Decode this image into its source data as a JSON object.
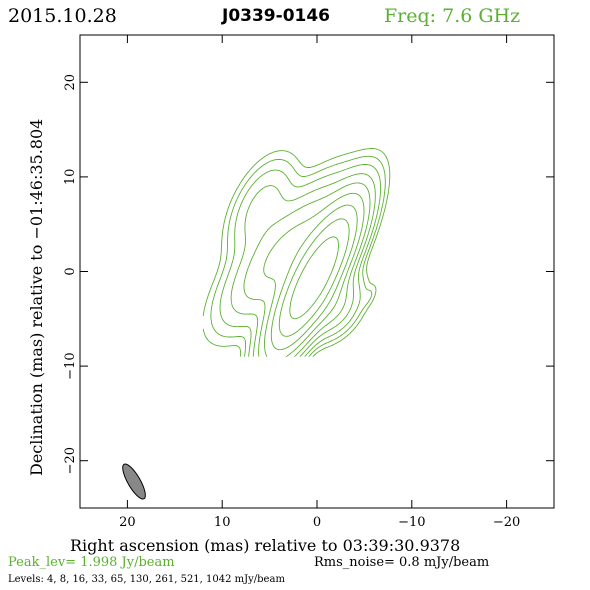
{
  "header": {
    "date": "2015.10.28",
    "source": "J0339-0146",
    "freq": "Freq: 7.6 GHz"
  },
  "footer": {
    "peak": "Peak_lev=  1.998 Jy/beam",
    "rms": "Rms_noise=  0.8 mJy/beam",
    "levels": "Levels:   4,   8,  16,  33,  65, 130, 261, 521, 1042 mJy/beam"
  },
  "chart_data": {
    "type": "contour",
    "xlabel": "Right ascension (mas) relative to 03:39:30.9378",
    "ylabel": "Declination (mas) relative to −01:46:35.804",
    "xlim": [
      25,
      -25
    ],
    "ylim": [
      -25,
      25
    ],
    "x_ticks": [
      20,
      10,
      0,
      -10,
      -20
    ],
    "y_ticks": [
      20,
      10,
      0,
      -10,
      -20
    ],
    "x_tick_labels": [
      "20",
      "10",
      "0",
      "−10",
      "−20"
    ],
    "y_tick_labels": [
      "20",
      "10",
      "0",
      "−10",
      "−20"
    ],
    "contour_levels_mJy": [
      4,
      8,
      16,
      33,
      65,
      130,
      261,
      521,
      1042
    ],
    "contour_color": "#5ab030",
    "beam": {
      "x": 19.3,
      "y": -22.2,
      "major_mas": 4.2,
      "minor_mas": 1.3,
      "pa_deg": 150,
      "color": "#888888"
    },
    "components": [
      {
        "x": 0.3,
        "y": -0.7,
        "peak": 1.998,
        "sx": 1.2,
        "sy": 4.2,
        "pa": 28
      },
      {
        "x": 3.2,
        "y": 2.2,
        "peak": 0.17,
        "sx": 1.7,
        "sy": 4.6,
        "pa": 40
      },
      {
        "x": 5.8,
        "y": 6.5,
        "peak": 0.05,
        "sx": 1.5,
        "sy": 3.0,
        "pa": 25
      },
      {
        "x": -1.5,
        "y": -3.5,
        "peak": 0.09,
        "sx": 1.4,
        "sy": 2.0,
        "pa": 35
      },
      {
        "x": -5.5,
        "y": -2.6,
        "peak": 0.006,
        "sx": 0.4,
        "sy": 0.9,
        "pa": 30
      }
    ]
  }
}
